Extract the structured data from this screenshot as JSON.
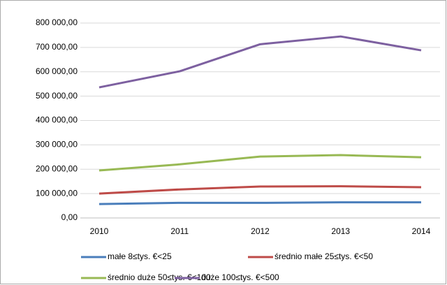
{
  "chart_data": {
    "type": "line",
    "categories": [
      "2010",
      "2011",
      "2012",
      "2013",
      "2014"
    ],
    "series": [
      {
        "name": "małe 8≤tys. €<25",
        "color": "#4a7ebb",
        "values": [
          57000,
          62000,
          62000,
          64000,
          64000
        ]
      },
      {
        "name": "średnio małe 25≤tys. €<50",
        "color": "#be4b48",
        "values": [
          100000,
          117000,
          129000,
          130000,
          126000
        ]
      },
      {
        "name": "średnio duże 50≤tys. €<100",
        "color": "#98b954",
        "values": [
          195000,
          220000,
          252000,
          258000,
          249000
        ]
      },
      {
        "name": "duże 100≤tys. €<500",
        "color": "#7d60a0",
        "values": [
          536000,
          602000,
          713000,
          745000,
          688000
        ]
      }
    ],
    "ylim": [
      0,
      800000
    ],
    "yticks": [
      {
        "value": 0,
        "label": "0,00"
      },
      {
        "value": 100000,
        "label": "100 000,00"
      },
      {
        "value": 200000,
        "label": "200 000,00"
      },
      {
        "value": 300000,
        "label": "300 000,00"
      },
      {
        "value": 400000,
        "label": "400 000,00"
      },
      {
        "value": 500000,
        "label": "500 000,00"
      },
      {
        "value": 600000,
        "label": "600 000,00"
      },
      {
        "value": 700000,
        "label": "700 000,00"
      },
      {
        "value": 800000,
        "label": "800 000,00"
      }
    ],
    "grid": true,
    "legend": "bottom"
  }
}
